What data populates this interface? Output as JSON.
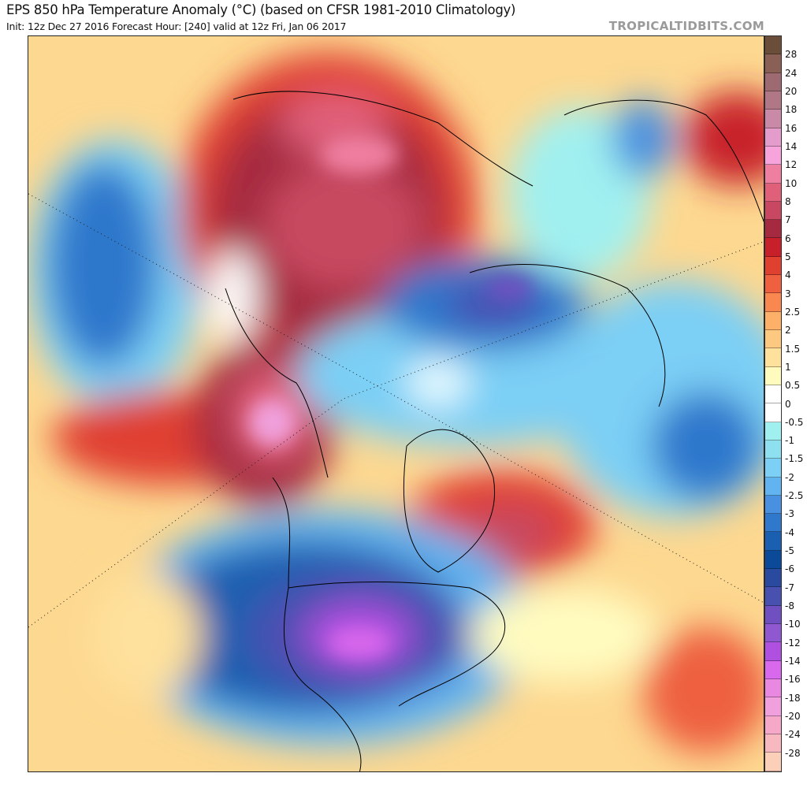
{
  "header": {
    "title": "EPS 850 hPa Temperature Anomaly (°C) (based on CFSR 1981-2010 Climatology)",
    "subtitle": "Init: 12z Dec 27 2016   Forecast Hour: [240]   valid at 12z Fri, Jan 06 2017",
    "brand": "TROPICALTIDBITS.COM"
  },
  "colorbar": {
    "labels": [
      "28",
      "24",
      "20",
      "18",
      "16",
      "14",
      "12",
      "10",
      "8",
      "7",
      "6",
      "5",
      "4",
      "3",
      "2.5",
      "2",
      "1.5",
      "1",
      "0.5",
      "0",
      "-0.5",
      "-1",
      "-1.5",
      "-2",
      "-2.5",
      "-3",
      "-4",
      "-5",
      "-6",
      "-7",
      "-8",
      "-10",
      "-12",
      "-14",
      "-16",
      "-18",
      "-20",
      "-24",
      "-28"
    ],
    "colors": [
      "#6b4e3a",
      "#8a5f55",
      "#9e6a72",
      "#b07886",
      "#c88aa6",
      "#e39ccb",
      "#f7a3dc",
      "#ef7fa0",
      "#e0607a",
      "#c74860",
      "#a52a40",
      "#c8202a",
      "#e04030",
      "#ee6040",
      "#f88850",
      "#fcb068",
      "#fdc880",
      "#fee19c",
      "#fffbbf",
      "#ffffff",
      "#ffffff",
      "#a0f0f0",
      "#8ee0f0",
      "#7ccff5",
      "#62b4f0",
      "#4a90e0",
      "#2f78cc",
      "#1b5fb0",
      "#0a4a98",
      "#2a4aa0",
      "#4850b0",
      "#7050c0",
      "#9058d0",
      "#b050e0",
      "#d868ec",
      "#e888e0",
      "#f0a0dc",
      "#f5a8c8",
      "#f8b8c0",
      "#fcd0b8"
    ]
  }
}
